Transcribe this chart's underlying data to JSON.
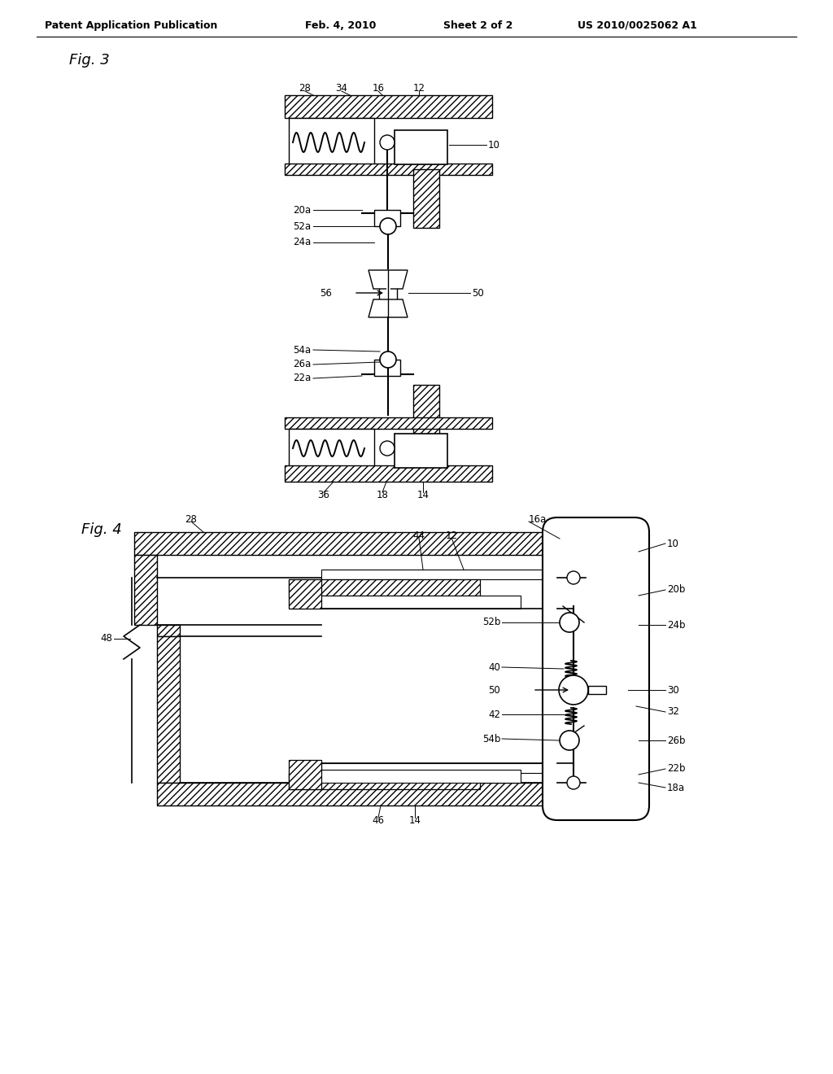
{
  "bg_color": "#ffffff",
  "page_width": 10.24,
  "page_height": 13.2,
  "header_text": "Patent Application Publication",
  "header_date": "Feb. 4, 2010",
  "header_sheet": "Sheet 2 of 2",
  "header_patent": "US 2010/0025062 A1",
  "fig3_label": "Fig. 3",
  "fig4_label": "Fig. 4"
}
